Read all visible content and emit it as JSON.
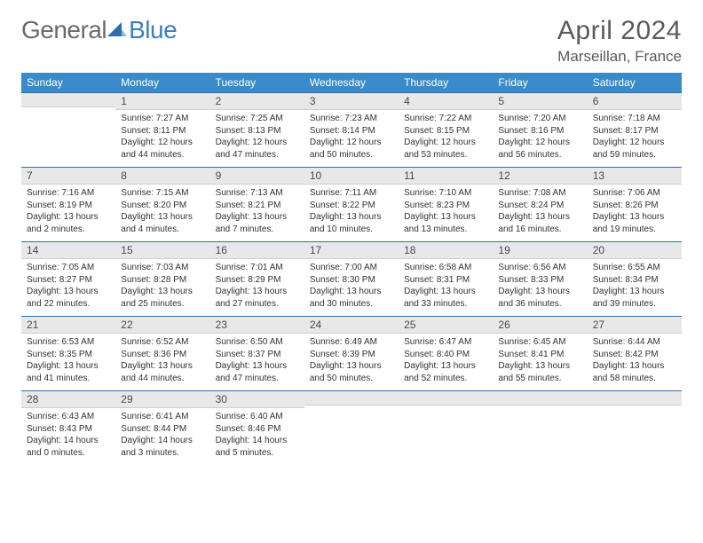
{
  "logo": {
    "text1": "General",
    "text2": "Blue"
  },
  "title": "April 2024",
  "location": "Marseillan, France",
  "colors": {
    "header_bg": "#3a8bc9",
    "header_text": "#ffffff",
    "daybar_bg": "#e8e8e8",
    "daybar_border_top": "#2f6fa8",
    "text": "#333333",
    "logo_gray": "#6b6b6b",
    "logo_blue": "#3a7fbf"
  },
  "weekdays": [
    "Sunday",
    "Monday",
    "Tuesday",
    "Wednesday",
    "Thursday",
    "Friday",
    "Saturday"
  ],
  "weeks": [
    [
      {
        "n": "",
        "lines": []
      },
      {
        "n": "1",
        "lines": [
          "Sunrise: 7:27 AM",
          "Sunset: 8:11 PM",
          "Daylight: 12 hours",
          "and 44 minutes."
        ]
      },
      {
        "n": "2",
        "lines": [
          "Sunrise: 7:25 AM",
          "Sunset: 8:13 PM",
          "Daylight: 12 hours",
          "and 47 minutes."
        ]
      },
      {
        "n": "3",
        "lines": [
          "Sunrise: 7:23 AM",
          "Sunset: 8:14 PM",
          "Daylight: 12 hours",
          "and 50 minutes."
        ]
      },
      {
        "n": "4",
        "lines": [
          "Sunrise: 7:22 AM",
          "Sunset: 8:15 PM",
          "Daylight: 12 hours",
          "and 53 minutes."
        ]
      },
      {
        "n": "5",
        "lines": [
          "Sunrise: 7:20 AM",
          "Sunset: 8:16 PM",
          "Daylight: 12 hours",
          "and 56 minutes."
        ]
      },
      {
        "n": "6",
        "lines": [
          "Sunrise: 7:18 AM",
          "Sunset: 8:17 PM",
          "Daylight: 12 hours",
          "and 59 minutes."
        ]
      }
    ],
    [
      {
        "n": "7",
        "lines": [
          "Sunrise: 7:16 AM",
          "Sunset: 8:19 PM",
          "Daylight: 13 hours",
          "and 2 minutes."
        ]
      },
      {
        "n": "8",
        "lines": [
          "Sunrise: 7:15 AM",
          "Sunset: 8:20 PM",
          "Daylight: 13 hours",
          "and 4 minutes."
        ]
      },
      {
        "n": "9",
        "lines": [
          "Sunrise: 7:13 AM",
          "Sunset: 8:21 PM",
          "Daylight: 13 hours",
          "and 7 minutes."
        ]
      },
      {
        "n": "10",
        "lines": [
          "Sunrise: 7:11 AM",
          "Sunset: 8:22 PM",
          "Daylight: 13 hours",
          "and 10 minutes."
        ]
      },
      {
        "n": "11",
        "lines": [
          "Sunrise: 7:10 AM",
          "Sunset: 8:23 PM",
          "Daylight: 13 hours",
          "and 13 minutes."
        ]
      },
      {
        "n": "12",
        "lines": [
          "Sunrise: 7:08 AM",
          "Sunset: 8:24 PM",
          "Daylight: 13 hours",
          "and 16 minutes."
        ]
      },
      {
        "n": "13",
        "lines": [
          "Sunrise: 7:06 AM",
          "Sunset: 8:26 PM",
          "Daylight: 13 hours",
          "and 19 minutes."
        ]
      }
    ],
    [
      {
        "n": "14",
        "lines": [
          "Sunrise: 7:05 AM",
          "Sunset: 8:27 PM",
          "Daylight: 13 hours",
          "and 22 minutes."
        ]
      },
      {
        "n": "15",
        "lines": [
          "Sunrise: 7:03 AM",
          "Sunset: 8:28 PM",
          "Daylight: 13 hours",
          "and 25 minutes."
        ]
      },
      {
        "n": "16",
        "lines": [
          "Sunrise: 7:01 AM",
          "Sunset: 8:29 PM",
          "Daylight: 13 hours",
          "and 27 minutes."
        ]
      },
      {
        "n": "17",
        "lines": [
          "Sunrise: 7:00 AM",
          "Sunset: 8:30 PM",
          "Daylight: 13 hours",
          "and 30 minutes."
        ]
      },
      {
        "n": "18",
        "lines": [
          "Sunrise: 6:58 AM",
          "Sunset: 8:31 PM",
          "Daylight: 13 hours",
          "and 33 minutes."
        ]
      },
      {
        "n": "19",
        "lines": [
          "Sunrise: 6:56 AM",
          "Sunset: 8:33 PM",
          "Daylight: 13 hours",
          "and 36 minutes."
        ]
      },
      {
        "n": "20",
        "lines": [
          "Sunrise: 6:55 AM",
          "Sunset: 8:34 PM",
          "Daylight: 13 hours",
          "and 39 minutes."
        ]
      }
    ],
    [
      {
        "n": "21",
        "lines": [
          "Sunrise: 6:53 AM",
          "Sunset: 8:35 PM",
          "Daylight: 13 hours",
          "and 41 minutes."
        ]
      },
      {
        "n": "22",
        "lines": [
          "Sunrise: 6:52 AM",
          "Sunset: 8:36 PM",
          "Daylight: 13 hours",
          "and 44 minutes."
        ]
      },
      {
        "n": "23",
        "lines": [
          "Sunrise: 6:50 AM",
          "Sunset: 8:37 PM",
          "Daylight: 13 hours",
          "and 47 minutes."
        ]
      },
      {
        "n": "24",
        "lines": [
          "Sunrise: 6:49 AM",
          "Sunset: 8:39 PM",
          "Daylight: 13 hours",
          "and 50 minutes."
        ]
      },
      {
        "n": "25",
        "lines": [
          "Sunrise: 6:47 AM",
          "Sunset: 8:40 PM",
          "Daylight: 13 hours",
          "and 52 minutes."
        ]
      },
      {
        "n": "26",
        "lines": [
          "Sunrise: 6:45 AM",
          "Sunset: 8:41 PM",
          "Daylight: 13 hours",
          "and 55 minutes."
        ]
      },
      {
        "n": "27",
        "lines": [
          "Sunrise: 6:44 AM",
          "Sunset: 8:42 PM",
          "Daylight: 13 hours",
          "and 58 minutes."
        ]
      }
    ],
    [
      {
        "n": "28",
        "lines": [
          "Sunrise: 6:43 AM",
          "Sunset: 8:43 PM",
          "Daylight: 14 hours",
          "and 0 minutes."
        ]
      },
      {
        "n": "29",
        "lines": [
          "Sunrise: 6:41 AM",
          "Sunset: 8:44 PM",
          "Daylight: 14 hours",
          "and 3 minutes."
        ]
      },
      {
        "n": "30",
        "lines": [
          "Sunrise: 6:40 AM",
          "Sunset: 8:46 PM",
          "Daylight: 14 hours",
          "and 5 minutes."
        ]
      },
      {
        "n": "",
        "lines": []
      },
      {
        "n": "",
        "lines": []
      },
      {
        "n": "",
        "lines": []
      },
      {
        "n": "",
        "lines": []
      }
    ]
  ]
}
